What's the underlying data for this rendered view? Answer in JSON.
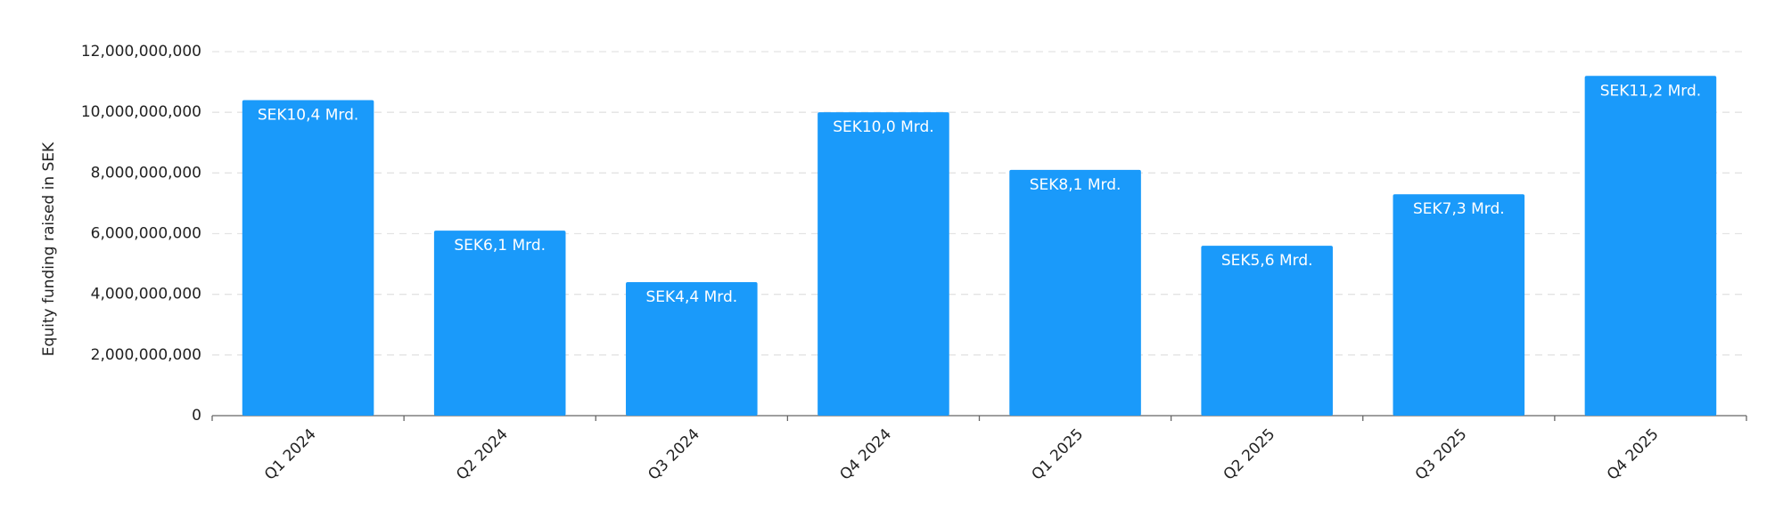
{
  "chart_data": {
    "type": "bar",
    "y_axis_label": "Equity funding raised in SEK",
    "categories": [
      "Q1 2024",
      "Q2 2024",
      "Q3 2024",
      "Q4 2024",
      "Q1 2025",
      "Q2 2025",
      "Q3 2025",
      "Q4 2025"
    ],
    "values": [
      10400000000,
      6100000000,
      4400000000,
      10000000000,
      8100000000,
      5600000000,
      7300000000,
      11200000000
    ],
    "value_labels": [
      "SEK10,4 Mrd.",
      "SEK6,1 Mrd.",
      "SEK4,4 Mrd.",
      "SEK10,0 Mrd.",
      "SEK8,1 Mrd.",
      "SEK5,6 Mrd.",
      "SEK7,3 Mrd.",
      "SEK11,2 Mrd."
    ],
    "color": "#1a9afa",
    "ylim": [
      0,
      12000000000
    ],
    "yticks": [
      0,
      {
        "value": 2000000000,
        "label": "2,000,000,000"
      },
      {
        "value": 4000000000,
        "label": "4,000,000,000"
      },
      {
        "value": 6000000000,
        "label": "6,000,000,000"
      },
      {
        "value": 8000000000,
        "label": "8,000,000,000"
      },
      {
        "value": 10000000000,
        "label": "10,000,000,000"
      },
      {
        "value": 12000000000,
        "label": "12,000,000,000"
      }
    ],
    "grid": true
  }
}
